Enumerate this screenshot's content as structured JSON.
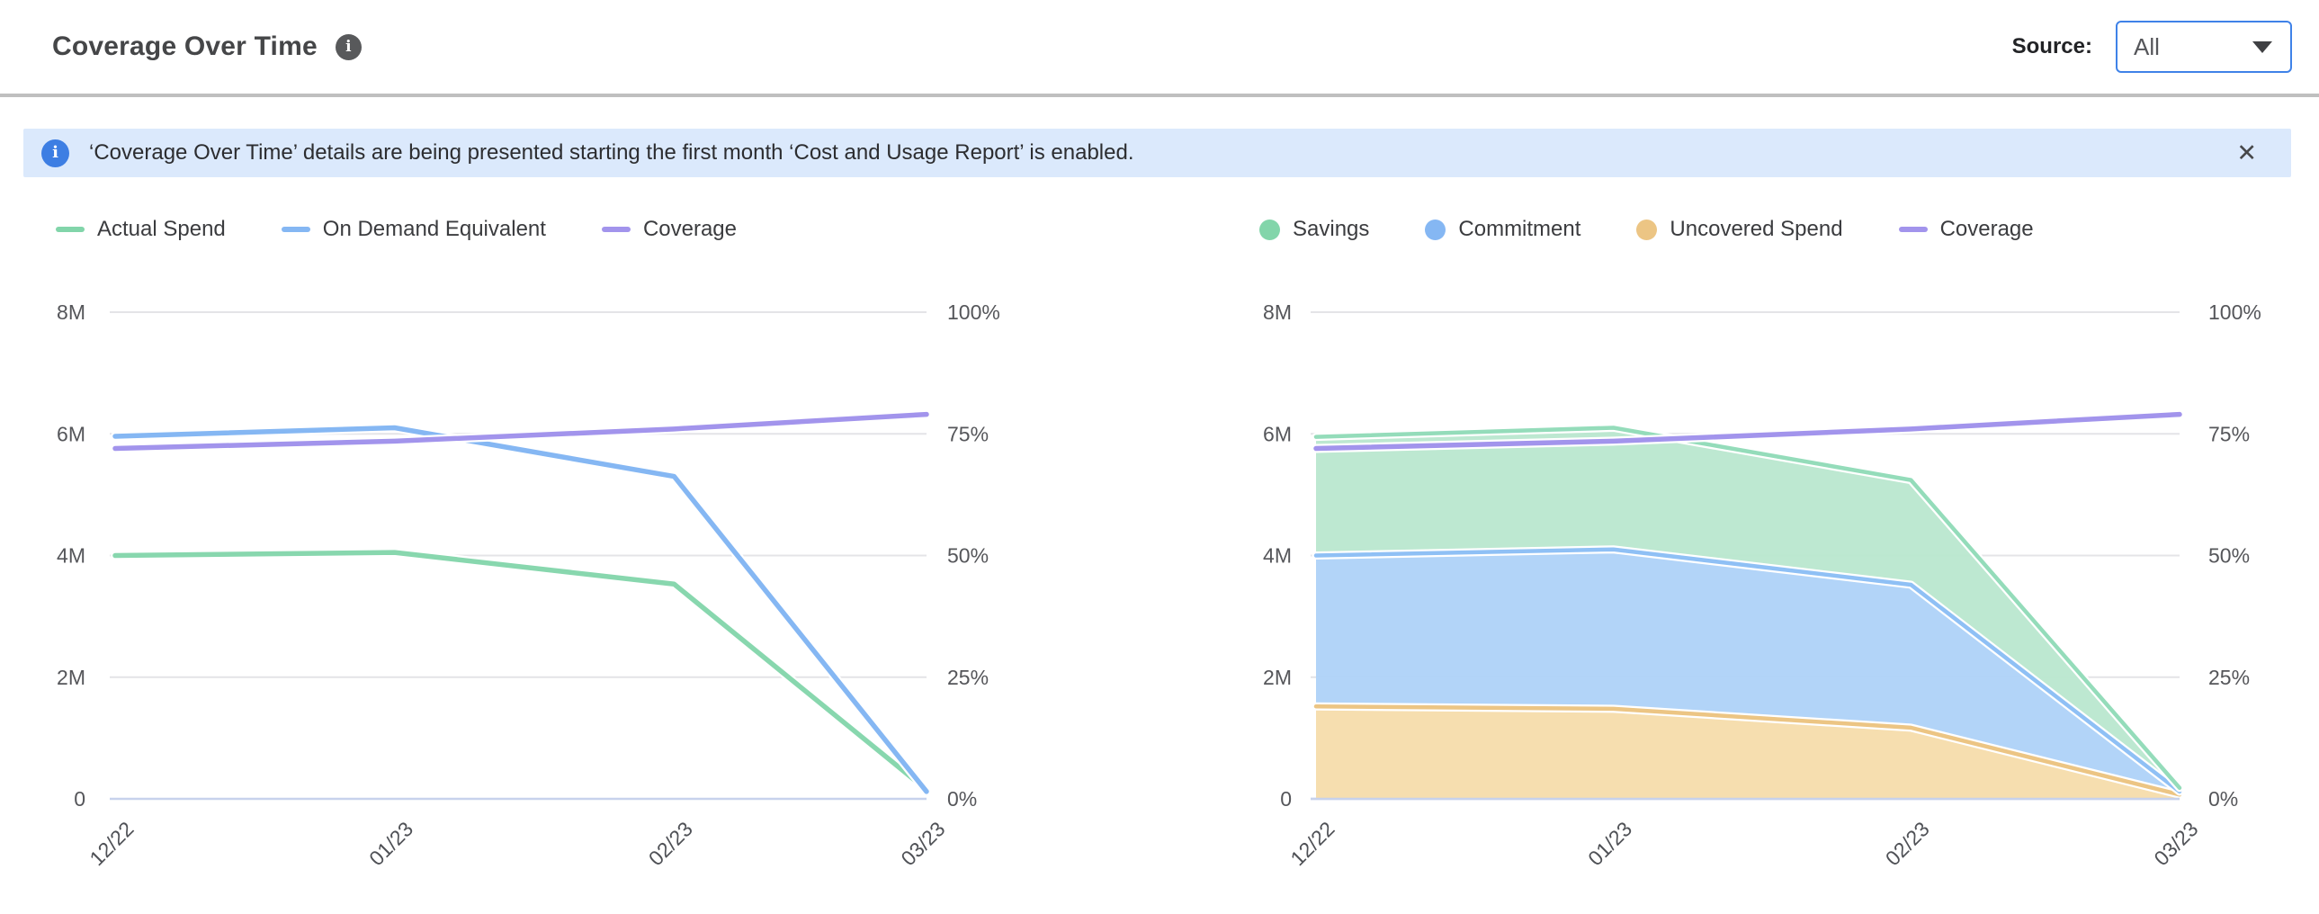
{
  "header": {
    "title": "Coverage Over Time",
    "source_label": "Source:",
    "source_value": "All"
  },
  "icons": {
    "info_glyph": "i",
    "close_glyph": "✕"
  },
  "banner": {
    "text": "‘Coverage Over Time’ details are being presented starting the first month ‘Cost and Usage Report’ is enabled."
  },
  "chart_data": [
    {
      "type": "line",
      "name": "spend-lines-chart",
      "x_labels": [
        "12/22",
        "01/23",
        "02/23",
        "03/23"
      ],
      "y_left": {
        "ticks": [
          "8M",
          "6M",
          "4M",
          "2M",
          "0"
        ],
        "max_m": 8
      },
      "y_right": {
        "ticks": [
          "100%",
          "75%",
          "50%",
          "25%",
          "0%"
        ],
        "max_pct": 100
      },
      "grid": true,
      "legend_position": "top",
      "legend": [
        {
          "label": "Actual Spend",
          "shape": "dash",
          "color": "#82d5aa"
        },
        {
          "label": "On Demand Equivalent",
          "shape": "dash",
          "color": "#85b7f3"
        },
        {
          "label": "Coverage",
          "shape": "dash",
          "color": "#a294ec"
        }
      ],
      "series": [
        {
          "name": "Actual Spend",
          "kind": "line",
          "axis": "left",
          "color": "#88d7ae",
          "values_m": [
            4.0,
            4.05,
            3.53,
            0.15
          ]
        },
        {
          "name": "On Demand Equivalent",
          "kind": "line",
          "axis": "left",
          "color": "#85b7f3",
          "values_m": [
            5.96,
            6.1,
            5.3,
            0.12
          ]
        },
        {
          "name": "Coverage",
          "kind": "line",
          "axis": "right",
          "color": "#a294ec",
          "values_pct": [
            72,
            73.5,
            76,
            79
          ]
        }
      ]
    },
    {
      "type": "area",
      "name": "stacked-coverage-chart",
      "stacked": true,
      "x_labels": [
        "12/22",
        "01/23",
        "02/23",
        "03/23"
      ],
      "y_left": {
        "ticks": [
          "8M",
          "6M",
          "4M",
          "2M",
          "0"
        ],
        "max_m": 8
      },
      "y_right": {
        "ticks": [
          "100%",
          "75%",
          "50%",
          "25%",
          "0%"
        ],
        "max_pct": 100
      },
      "grid": true,
      "legend_position": "top",
      "legend": [
        {
          "label": "Savings",
          "shape": "circle",
          "color": "#82d5aa"
        },
        {
          "label": "Commitment",
          "shape": "circle",
          "color": "#85b7f3"
        },
        {
          "label": "Uncovered Spend",
          "shape": "circle",
          "color": "#ecc584"
        },
        {
          "label": "Coverage",
          "shape": "dash",
          "color": "#a294ec"
        }
      ],
      "series": [
        {
          "name": "Uncovered Spend",
          "kind": "area",
          "axis": "left",
          "fill": "#f5dcab",
          "color": "#ecc584",
          "values_m": [
            1.52,
            1.48,
            1.17,
            0.07
          ]
        },
        {
          "name": "Commitment",
          "kind": "area",
          "axis": "left",
          "fill": "#aed2f8",
          "color": "#8fc0f5",
          "values_m": [
            2.48,
            2.62,
            2.35,
            0.05
          ]
        },
        {
          "name": "Savings",
          "kind": "area",
          "axis": "left",
          "fill": "#b9e7cf",
          "color": "#94dcba",
          "values_m": [
            1.95,
            2.0,
            1.72,
            0.06
          ]
        },
        {
          "name": "Coverage",
          "kind": "line",
          "axis": "right",
          "color": "#a294ec",
          "values_pct": [
            72,
            73.5,
            76,
            79
          ]
        }
      ]
    }
  ],
  "colors": {
    "grid": "#e4e4e7",
    "zero_line": "#c7d2ec",
    "axis_text": "#55565a",
    "accent_blue": "#3f82e8"
  }
}
